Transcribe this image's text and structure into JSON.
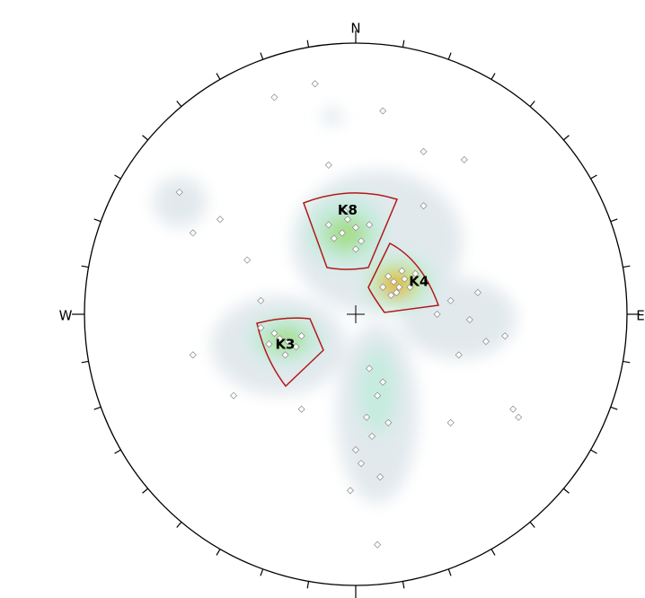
{
  "chart_data": {
    "type": "stereonet",
    "directions": {
      "north": "N",
      "west": "W",
      "east": "E"
    },
    "sets": [
      {
        "label": "K8",
        "x": -0.03,
        "y": 0.31
      },
      {
        "label": "K4",
        "x": 0.16,
        "y": 0.12
      },
      {
        "label": "K3",
        "x": -0.26,
        "y": -0.1
      }
    ],
    "xlim": [
      -1,
      1
    ],
    "ylim": [
      -1,
      1
    ],
    "point_color": "#ffffff",
    "x": [
      -0.05,
      0,
      -0.08,
      0.02,
      -0.03,
      0.05,
      -0.1,
      0,
      -0.04,
      0.14,
      0.16,
      0.12,
      0.18,
      0.15,
      0.2,
      0.1,
      0.17,
      0.13,
      0.22,
      -0.28,
      -0.25,
      -0.3,
      -0.22,
      -0.32,
      -0.26,
      -0.2,
      -0.35,
      0.05,
      0.08,
      0.04,
      0.1,
      0.06,
      0.02,
      0.09,
      0,
      0.12,
      -0.02,
      0.35,
      0.42,
      0.48,
      0.3,
      0.45,
      0.38,
      0.55,
      0.58,
      -0.65,
      -0.6,
      -0.5,
      -0.3,
      -0.15,
      0.1,
      0.4,
      0.25,
      -0.4,
      -0.6,
      -0.45,
      -0.2,
      0.35,
      0.6,
      0.08,
      -0.35,
      0.25,
      -0.1
    ],
    "y": [
      0.3,
      0.32,
      0.28,
      0.27,
      0.35,
      0.33,
      0.33,
      0.24,
      0.38,
      0.12,
      0.1,
      0.14,
      0.13,
      0.08,
      0.1,
      0.1,
      0.16,
      0.07,
      0.15,
      -0.09,
      -0.1,
      -0.07,
      -0.12,
      -0.11,
      -0.15,
      -0.08,
      -0.05,
      -0.2,
      -0.3,
      -0.38,
      -0.25,
      -0.45,
      -0.55,
      -0.6,
      -0.5,
      -0.4,
      -0.65,
      0.05,
      -0.02,
      -0.1,
      0,
      0.08,
      -0.15,
      -0.08,
      -0.35,
      0.45,
      0.3,
      0.35,
      0.8,
      0.85,
      0.75,
      0.57,
      0.4,
      0.2,
      -0.15,
      -0.3,
      -0.35,
      -0.4,
      -0.38,
      -0.85,
      0.05,
      0.6,
      0.55
    ]
  }
}
